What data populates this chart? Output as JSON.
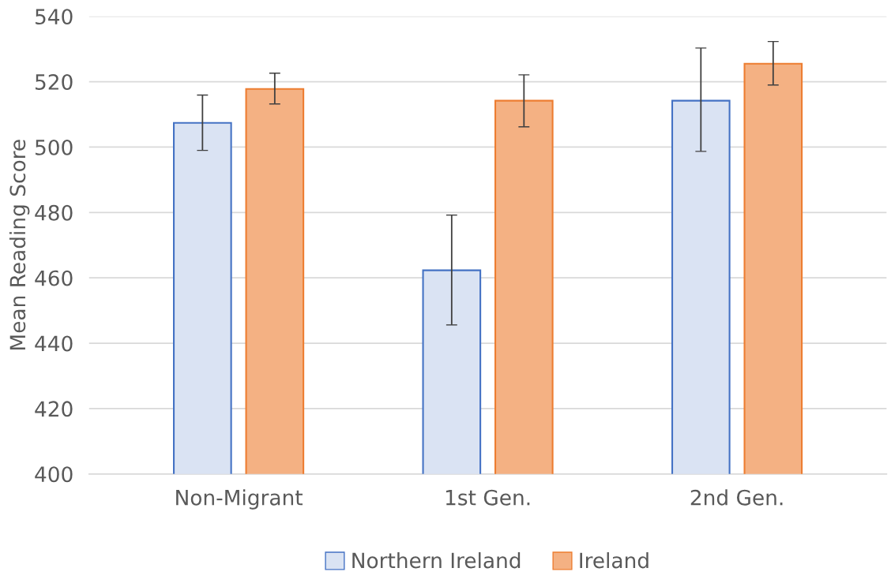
{
  "chart_data": {
    "type": "bar",
    "ylabel": "Mean Reading Score",
    "categories": [
      "Non-Migrant",
      "1st Gen.",
      "2nd Gen."
    ],
    "series": [
      {
        "name": "Northern Ireland",
        "color": "#dae3f3",
        "values": [
          507.4,
          462.3,
          514.2
        ],
        "errors": [
          [
            499.0,
            515.9
          ],
          [
            445.6,
            479.2
          ],
          [
            498.7,
            530.3
          ]
        ]
      },
      {
        "name": "Ireland",
        "color": "#f4b183",
        "values": [
          517.8,
          514.2,
          525.5
        ],
        "errors": [
          [
            513.2,
            522.6
          ],
          [
            506.2,
            522.1
          ],
          [
            519.0,
            532.3
          ]
        ]
      }
    ],
    "ylim": [
      400,
      540
    ],
    "yticks": [
      400,
      420,
      440,
      460,
      480,
      500,
      520,
      540
    ],
    "grid": "y",
    "legend": "bottom"
  }
}
